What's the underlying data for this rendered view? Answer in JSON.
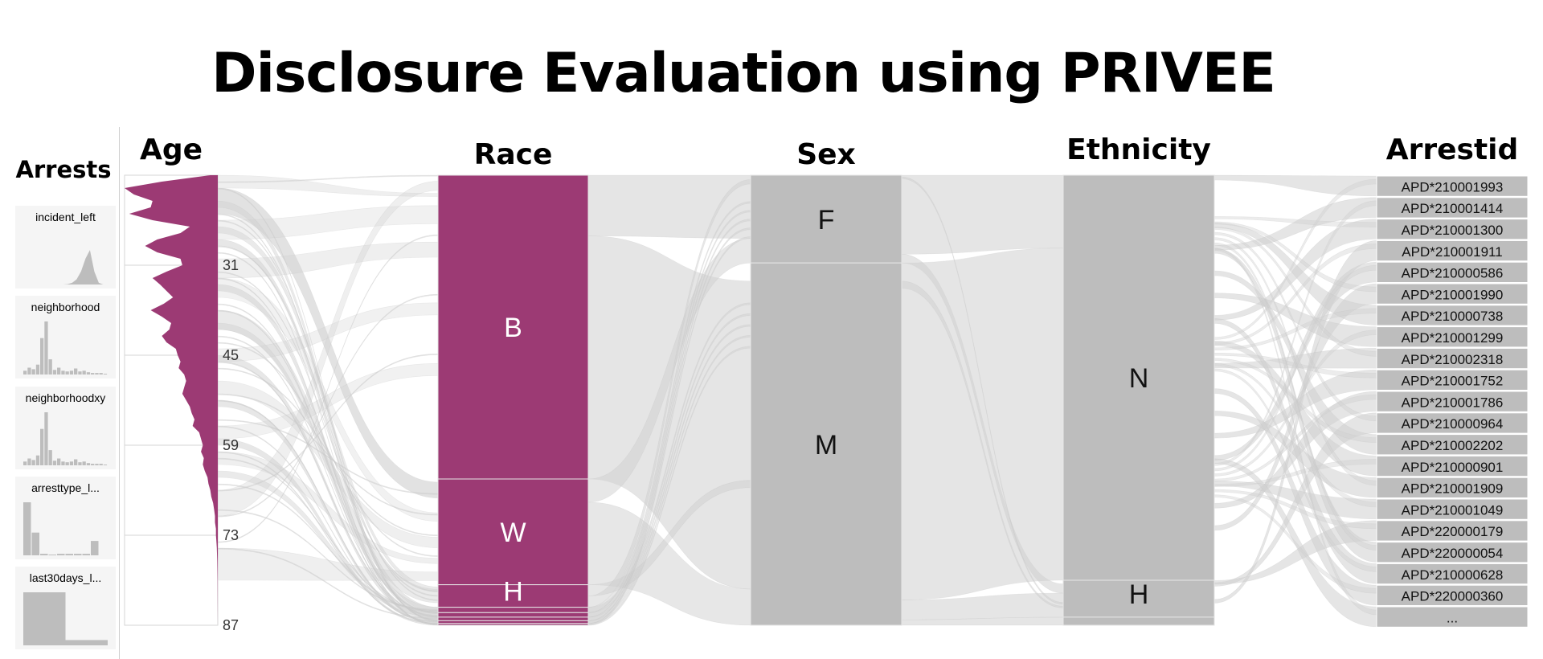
{
  "title": "Disclosure Evaluation using PRIVEE",
  "sidebar": {
    "title": "Arrests",
    "items": [
      {
        "label": "incident_left",
        "kind": "density",
        "values": [
          0,
          0,
          0,
          0,
          0,
          0,
          0,
          0,
          0,
          0,
          1,
          4,
          12,
          30,
          60,
          80,
          30,
          4,
          0,
          0
        ]
      },
      {
        "label": "neighborhood",
        "kind": "bars",
        "values": [
          5,
          9,
          7,
          13,
          48,
          70,
          20,
          6,
          9,
          5,
          4,
          5,
          8,
          4,
          5,
          3,
          2,
          2,
          2,
          1
        ]
      },
      {
        "label": "neighborhoodxy",
        "kind": "bars",
        "values": [
          5,
          9,
          7,
          13,
          48,
          70,
          20,
          6,
          9,
          5,
          4,
          5,
          8,
          4,
          5,
          3,
          2,
          2,
          2,
          1
        ]
      },
      {
        "label": "arresttype_l...",
        "kind": "bars",
        "values": [
          70,
          30,
          2,
          1,
          2,
          2,
          2,
          2,
          19,
          0
        ]
      },
      {
        "label": "last30days_l...",
        "kind": "bars",
        "values": [
          70,
          7
        ]
      }
    ]
  },
  "colors": {
    "highlight": "#9c3a74",
    "neutral": "#bdbdbd",
    "ribbon": "#d0d0d0"
  },
  "chart_data": {
    "type": "parallel-sets",
    "axes": [
      {
        "name": "Age",
        "kind": "numeric",
        "range": [
          17,
          87
        ],
        "ticks": [
          31,
          45,
          59,
          73,
          87
        ]
      },
      {
        "name": "Race",
        "kind": "categorical",
        "categories": [
          {
            "label": "B",
            "share": 0.675
          },
          {
            "label": "W",
            "share": 0.235
          },
          {
            "label": "H",
            "share": 0.05
          },
          {
            "label": "",
            "share": 0.012
          },
          {
            "label": "",
            "share": 0.01
          },
          {
            "label": "",
            "share": 0.008
          },
          {
            "label": "",
            "share": 0.006
          },
          {
            "label": "",
            "share": 0.004
          }
        ]
      },
      {
        "name": "Sex",
        "kind": "categorical",
        "categories": [
          {
            "label": "F",
            "share": 0.195
          },
          {
            "label": "M",
            "share": 0.805
          }
        ]
      },
      {
        "name": "Ethnicity",
        "kind": "categorical",
        "categories": [
          {
            "label": "N",
            "share": 0.9
          },
          {
            "label": "H",
            "share": 0.082
          },
          {
            "label": "",
            "share": 0.018
          }
        ]
      },
      {
        "name": "Arrestid",
        "kind": "list",
        "values": [
          "APD*210001993",
          "APD*210001414",
          "APD*210001300",
          "APD*210001911",
          "APD*210000586",
          "APD*210001990",
          "APD*210000738",
          "APD*210001299",
          "APD*210002318",
          "APD*210001752",
          "APD*210001786",
          "APD*210000964",
          "APD*210002202",
          "APD*210000901",
          "APD*210001909",
          "APD*210001049",
          "APD*220000179",
          "APD*220000054",
          "APD*210000628",
          "APD*220000360",
          "..."
        ]
      }
    ],
    "age_density": [
      [
        17,
        8
      ],
      [
        18,
        60
      ],
      [
        19,
        100
      ],
      [
        20,
        90
      ],
      [
        21,
        70
      ],
      [
        22,
        72
      ],
      [
        23,
        95
      ],
      [
        24,
        70
      ],
      [
        25,
        30
      ],
      [
        26,
        40
      ],
      [
        27,
        65
      ],
      [
        28,
        78
      ],
      [
        29,
        65
      ],
      [
        30,
        40
      ],
      [
        31,
        38
      ],
      [
        32,
        55
      ],
      [
        33,
        70
      ],
      [
        34,
        62
      ],
      [
        35,
        55
      ],
      [
        36,
        48
      ],
      [
        37,
        58
      ],
      [
        38,
        72
      ],
      [
        39,
        60
      ],
      [
        40,
        50
      ],
      [
        41,
        52
      ],
      [
        42,
        60
      ],
      [
        43,
        55
      ],
      [
        44,
        45
      ],
      [
        45,
        43
      ],
      [
        46,
        40
      ],
      [
        47,
        42
      ],
      [
        48,
        36
      ],
      [
        49,
        34
      ],
      [
        50,
        36
      ],
      [
        51,
        38
      ],
      [
        52,
        34
      ],
      [
        53,
        30
      ],
      [
        54,
        28
      ],
      [
        55,
        25
      ],
      [
        56,
        27
      ],
      [
        57,
        20
      ],
      [
        58,
        18
      ],
      [
        59,
        16
      ],
      [
        60,
        18
      ],
      [
        61,
        15
      ],
      [
        62,
        16
      ],
      [
        63,
        14
      ],
      [
        64,
        11
      ],
      [
        65,
        10
      ],
      [
        66,
        8
      ],
      [
        67,
        7
      ],
      [
        68,
        5
      ],
      [
        69,
        4
      ],
      [
        70,
        3
      ],
      [
        71,
        3
      ],
      [
        72,
        2
      ],
      [
        73,
        2
      ],
      [
        74,
        1.5
      ],
      [
        75,
        1
      ],
      [
        77,
        0.6
      ],
      [
        80,
        0.3
      ],
      [
        87,
        0
      ]
    ]
  }
}
